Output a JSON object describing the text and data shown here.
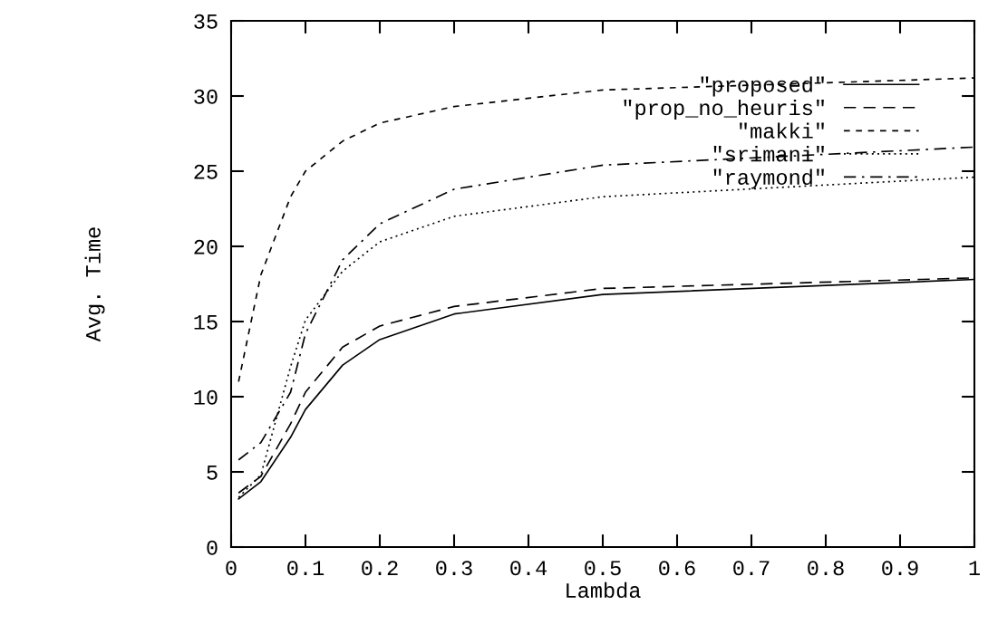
{
  "chart_data": {
    "type": "line",
    "xlabel": "Lambda",
    "ylabel": "Avg. Time",
    "xlim": [
      0,
      1
    ],
    "xticks": [
      0,
      0.1,
      0.2,
      0.3,
      0.4,
      0.5,
      0.6,
      0.7,
      0.8,
      0.9,
      1
    ],
    "ylim": [
      0,
      35
    ],
    "yticks": [
      0,
      5,
      10,
      15,
      20,
      25,
      30,
      35
    ],
    "x": [
      0.01,
      0.04,
      0.08,
      0.1,
      0.15,
      0.2,
      0.3,
      0.5,
      1.0
    ],
    "grid": false,
    "legend": "top right",
    "marker": "none",
    "series": [
      {
        "name": "\"proposed\"",
        "color": "#000000",
        "line_style": "solid",
        "values": [
          3.2,
          4.35,
          7.3,
          9.15,
          12.1,
          13.8,
          15.5,
          16.8,
          17.8
        ]
      },
      {
        "name": "\"prop_no_heuris\"",
        "color": "#000000",
        "line_style": "dashed",
        "values": [
          3.6,
          4.7,
          8.2,
          10.3,
          13.3,
          14.7,
          16.0,
          17.2,
          17.9
        ]
      },
      {
        "name": "\"makki\"",
        "color": "#000000",
        "line_style": "short_dashed",
        "values": [
          11.0,
          18.1,
          23.3,
          25.0,
          27.0,
          28.2,
          29.3,
          30.4,
          31.2
        ]
      },
      {
        "name": "\"srimani\"",
        "color": "#000000",
        "line_style": "dotted",
        "values": [
          3.3,
          4.8,
          12.0,
          15.1,
          18.35,
          20.3,
          22.0,
          23.3,
          24.6
        ]
      },
      {
        "name": "\"raymond\"",
        "color": "#000000",
        "line_style": "dashdot",
        "values": [
          5.8,
          6.95,
          10.3,
          14.2,
          19.1,
          21.5,
          23.8,
          25.4,
          26.6
        ]
      }
    ]
  }
}
